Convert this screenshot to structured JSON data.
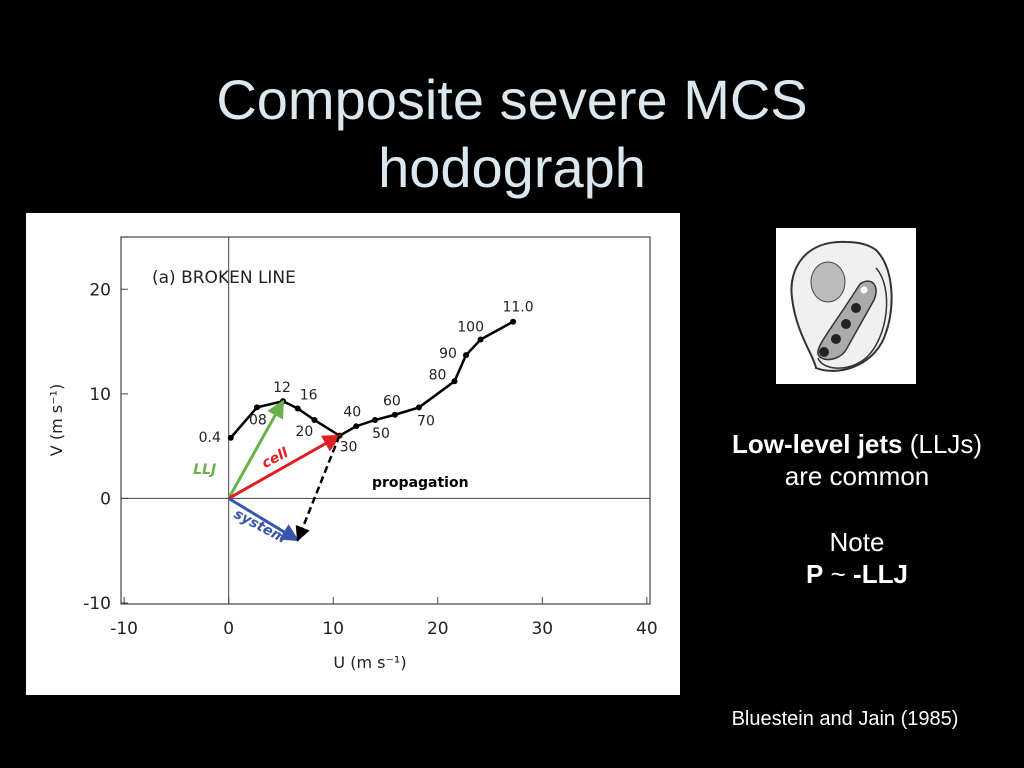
{
  "title": "Composite severe MCS hodograph",
  "chart_data": {
    "type": "line",
    "title": "(a) BROKEN LINE",
    "x_label": "U (m s⁻¹)",
    "y_label": "V (m s⁻¹)",
    "x": [
      0.2,
      2.7,
      5.2,
      6.6,
      8.2,
      10.6,
      12.2,
      14.0,
      15.9,
      18.2,
      21.6,
      22.7,
      24.1,
      27.2
    ],
    "values": [
      5.8,
      8.7,
      9.3,
      8.6,
      7.5,
      6.0,
      6.9,
      7.5,
      8.0,
      8.7,
      11.2,
      13.7,
      15.2,
      16.9
    ],
    "point_labels": [
      "0.4",
      "08",
      "12",
      "16",
      "20",
      "30",
      "40",
      "50",
      "60",
      "70",
      "80",
      "90",
      "100",
      "11.0"
    ],
    "color": "#000000",
    "xlim": [
      -10.3,
      40.3
    ],
    "ylim": [
      -10.1,
      25
    ],
    "xticks": [
      -10,
      0,
      10,
      20,
      30,
      40
    ],
    "yticks": [
      -10,
      0,
      10,
      20
    ],
    "arrows": [
      {
        "name": "LLJ",
        "color": "#6ab04c",
        "u": 5.2,
        "v": 9.3
      },
      {
        "name": "cell",
        "color": "#e02020",
        "u": 10.6,
        "v": 6.0
      },
      {
        "name": "system",
        "color": "#3a56a8",
        "u": 6.6,
        "v": -4.0
      },
      {
        "name": "propagation",
        "color": "#000000"
      }
    ]
  },
  "side_text": {
    "bold": "Low-level jets",
    "rest": "(LLJs)",
    "line2": "are common",
    "note": "Note",
    "p": "P",
    "tilde": "~",
    "llj": "-LLJ"
  },
  "citation": "Bluestein and Jain (1985)"
}
